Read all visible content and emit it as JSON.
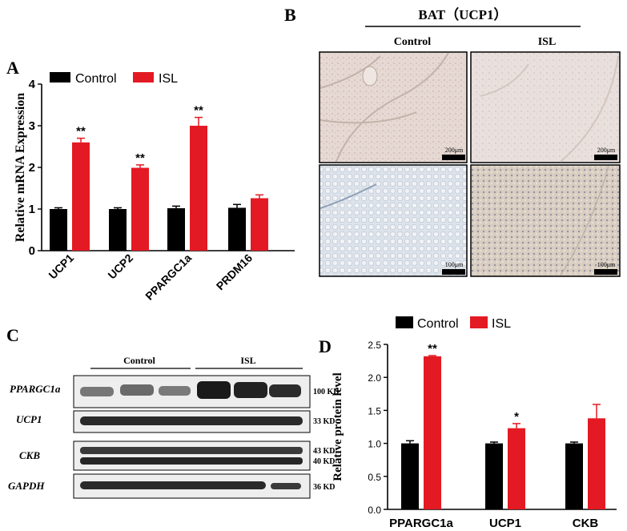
{
  "panel_labels": {
    "a": "A",
    "b": "B",
    "c": "C",
    "d": "D"
  },
  "colors": {
    "control": "#000000",
    "isl": "#e31a23"
  },
  "panel_a": {
    "legend": [
      "Control",
      "ISL"
    ]
  },
  "panel_b": {
    "title": "BAT（UCP1）",
    "col_labels": [
      "Control",
      "ISL"
    ],
    "scale_top": "200μm",
    "scale_bottom": "100μm"
  },
  "panel_c": {
    "group_labels": [
      "Control",
      "ISL"
    ],
    "row_labels": [
      "PPARGC1a",
      "UCP1",
      "CKB",
      "GAPDH"
    ],
    "kd_labels": [
      "100 KD",
      "33 KD",
      "43 KD",
      "40 KD",
      "36 KD"
    ]
  },
  "panel_d": {
    "legend": [
      "Control",
      "ISL"
    ]
  },
  "chart_data": [
    {
      "type": "bar",
      "ylabel": "Relative mRNA Expression",
      "ylim": [
        0,
        4
      ],
      "yticks": [
        "0",
        "1",
        "2",
        "3",
        "4"
      ],
      "categories": [
        "UCP1",
        "UCP2",
        "PPARGC1a",
        "PRDM16"
      ],
      "series": [
        {
          "name": "Control",
          "values": [
            1.0,
            1.0,
            1.02,
            1.03
          ],
          "errors": [
            0.03,
            0.03,
            0.05,
            0.08
          ]
        },
        {
          "name": "ISL",
          "values": [
            2.6,
            1.99,
            3.0,
            1.26
          ],
          "errors": [
            0.1,
            0.07,
            0.2,
            0.08
          ]
        }
      ],
      "significance": [
        "**",
        "**",
        "**",
        ""
      ],
      "legend_position": "top"
    },
    {
      "type": "bar",
      "ylabel": "Relative protein level",
      "ylim": [
        0,
        2.5
      ],
      "yticks": [
        "0.0",
        "0.5",
        "1.0",
        "1.5",
        "2.0",
        "2.5"
      ],
      "categories": [
        "PPARGC1a",
        "UCP1",
        "CKB"
      ],
      "series": [
        {
          "name": "Control",
          "values": [
            1.0,
            1.0,
            1.0
          ],
          "errors": [
            0.04,
            0.02,
            0.02
          ]
        },
        {
          "name": "ISL",
          "values": [
            2.32,
            1.23,
            1.38
          ],
          "errors": [
            0.01,
            0.07,
            0.21
          ]
        }
      ],
      "significance": [
        "**",
        "*",
        ""
      ],
      "legend_position": "top"
    }
  ]
}
